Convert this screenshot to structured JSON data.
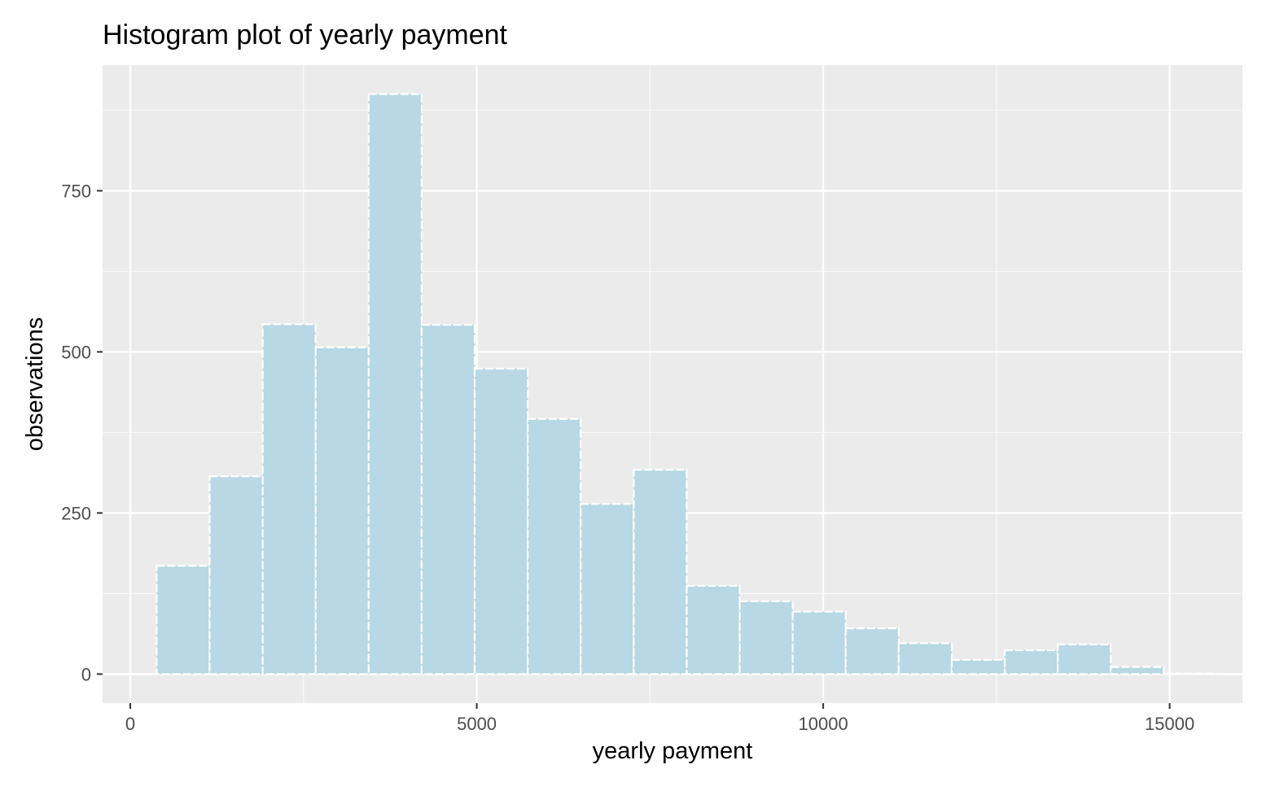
{
  "chart_data": {
    "type": "bar",
    "subtype": "histogram",
    "title": "Histogram plot of yearly payment",
    "xlabel": "yearly payment",
    "ylabel": "observations",
    "xlim": [
      -400,
      16050
    ],
    "ylim": [
      -45,
      945
    ],
    "x_ticks": [
      0,
      5000,
      10000,
      15000
    ],
    "y_ticks": [
      0,
      250,
      500,
      750
    ],
    "x_tick_labels": [
      "0",
      "5000",
      "10000",
      "15000"
    ],
    "y_tick_labels": [
      "0",
      "250",
      "500",
      "750"
    ],
    "grid": true,
    "colors": {
      "panel_background": "#ebebeb",
      "grid_major": "#ffffff",
      "grid_minor": "#f5f5f5",
      "bar_fill": "#b7d8e4",
      "bar_outline": "#ffffff"
    },
    "bins": [
      {
        "x0": 380,
        "x1": 1145,
        "count": 168
      },
      {
        "x0": 1145,
        "x1": 1910,
        "count": 307
      },
      {
        "x0": 1910,
        "x1": 2675,
        "count": 543
      },
      {
        "x0": 2675,
        "x1": 3440,
        "count": 507
      },
      {
        "x0": 3440,
        "x1": 4205,
        "count": 900
      },
      {
        "x0": 4205,
        "x1": 4970,
        "count": 542
      },
      {
        "x0": 4970,
        "x1": 5735,
        "count": 474
      },
      {
        "x0": 5735,
        "x1": 6500,
        "count": 396
      },
      {
        "x0": 6500,
        "x1": 7265,
        "count": 264
      },
      {
        "x0": 7265,
        "x1": 8030,
        "count": 317
      },
      {
        "x0": 8030,
        "x1": 8795,
        "count": 137
      },
      {
        "x0": 8795,
        "x1": 9560,
        "count": 113
      },
      {
        "x0": 9560,
        "x1": 10325,
        "count": 97
      },
      {
        "x0": 10325,
        "x1": 11090,
        "count": 71
      },
      {
        "x0": 11090,
        "x1": 11855,
        "count": 48
      },
      {
        "x0": 11855,
        "x1": 12620,
        "count": 22
      },
      {
        "x0": 12620,
        "x1": 13385,
        "count": 37
      },
      {
        "x0": 13385,
        "x1": 14150,
        "count": 46
      },
      {
        "x0": 14150,
        "x1": 14915,
        "count": 11
      },
      {
        "x0": 14915,
        "x1": 15680,
        "count": 1
      }
    ]
  }
}
